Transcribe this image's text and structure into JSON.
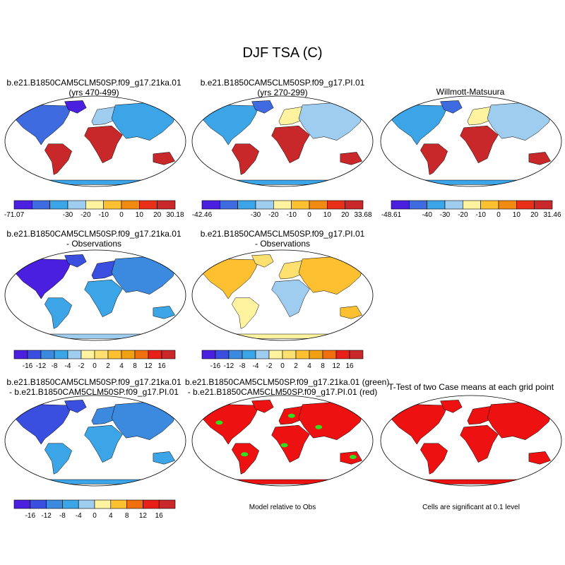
{
  "figure": {
    "title": "DJF TSA (C)"
  },
  "colors": {
    "abs_scale": [
      "#4a1fe0",
      "#3f6be0",
      "#3ba5e8",
      "#9fcdf0",
      "#fff3a0",
      "#fcc030",
      "#f08a10",
      "#e83018",
      "#c8282a"
    ],
    "diff_scale": [
      "#4a1fe0",
      "#3a4ee0",
      "#3b8ae0",
      "#3ba5e8",
      "#9fcdf0",
      "#fff3a0",
      "#fde070",
      "#fcc030",
      "#f0a010",
      "#f07010",
      "#e82018",
      "#c8282a"
    ],
    "ttest_red": "#ee1111",
    "ttest_green": "#33dd22"
  },
  "chart_data": [
    {
      "id": "p1",
      "type": "heatmap",
      "variable": "TSA",
      "units": "C",
      "title_line1": "b.e21.B1850CAM5CLM50SP.f09_g17.21ka.01",
      "title_line2": "(yrs 470-499)",
      "colorbar": {
        "min_label": "-71.07",
        "max_label": "30.18",
        "tick_labels": [
          "-30",
          "-20",
          "-10",
          "0",
          "10",
          "20"
        ]
      }
    },
    {
      "id": "p2",
      "type": "heatmap",
      "variable": "TSA",
      "units": "C",
      "title_line1": "b.e21.B1850CAM5CLM50SP.f09_g17.PI.01",
      "title_line2": "(yrs 270-299)",
      "colorbar": {
        "min_label": "-42.46",
        "max_label": "33.68",
        "tick_labels": [
          "-30",
          "-20",
          "-10",
          "0",
          "10",
          "20"
        ]
      }
    },
    {
      "id": "p3",
      "type": "heatmap",
      "variable": "TSA",
      "units": "C",
      "title_line1": "Willmott-Matsuura",
      "colorbar": {
        "min_label": "-48.61",
        "max_label": "31.46",
        "tick_labels": [
          "-40",
          "-30",
          "-20",
          "-10",
          "0",
          "10",
          "20"
        ]
      }
    },
    {
      "id": "p4",
      "type": "heatmap",
      "variable": "TSA difference",
      "units": "C",
      "title_line1": "b.e21.B1850CAM5CLM50SP.f09_g17.21ka.01",
      "title_line2": "- Observations",
      "colorbar": {
        "tick_labels": [
          "-16",
          "-12",
          "-8",
          "-4",
          "-2",
          "0",
          "2",
          "4",
          "8",
          "12",
          "16"
        ]
      }
    },
    {
      "id": "p5",
      "type": "heatmap",
      "variable": "TSA difference",
      "units": "C",
      "title_line1": "b.e21.B1850CAM5CLM50SP.f09_g17.PI.01",
      "title_line2": "- Observations",
      "colorbar": {
        "tick_labels": [
          "-16",
          "-12",
          "-8",
          "-4",
          "-2",
          "0",
          "2",
          "4",
          "8",
          "12",
          "16"
        ]
      }
    },
    {
      "id": "p6",
      "type": "heatmap",
      "variable": "TSA difference",
      "units": "C",
      "title_line1": "b.e21.B1850CAM5CLM50SP.f09_g17.21ka.01",
      "title_line2": "- b.e21.B1850CAM5CLM50SP.f09_g17.PI.01",
      "colorbar": {
        "tick_labels": [
          "-16",
          "-12",
          "-8",
          "-4",
          "0",
          "4",
          "8",
          "12",
          "16"
        ]
      }
    },
    {
      "id": "p7",
      "type": "heatmap",
      "title_line1": "b.e21.B1850CAM5CLM50SP.f09_g17.21ka.01 (green)",
      "title_line2": "- b.e21.B1850CAM5CLM50SP.f09_g17.PI.01 (red)",
      "caption": "Model relative to Obs"
    },
    {
      "id": "p8",
      "type": "heatmap",
      "title_line1": "T-Test of two Case means at each grid point",
      "caption": "Cells are significant at 0.1 level"
    }
  ]
}
